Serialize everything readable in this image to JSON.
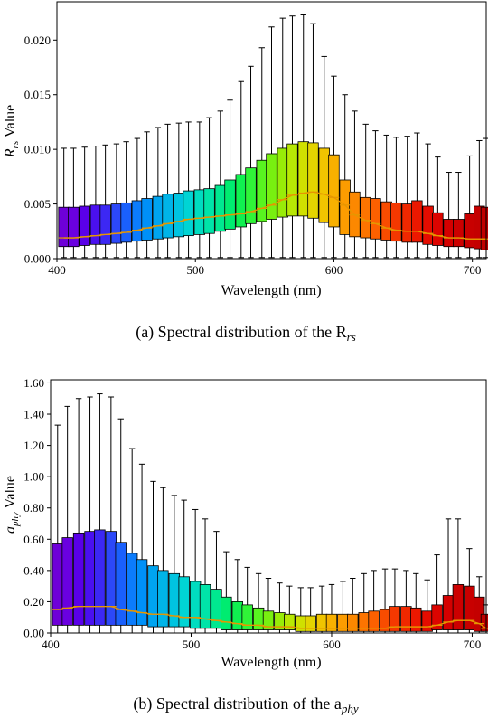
{
  "chart_data": [
    {
      "type": "box",
      "caption": "(a) Spectral distribution of the R",
      "caption_sub": "rs",
      "xlabel": "Wavelength (nm)",
      "ylabel_main": "R",
      "ylabel_sub": "rs",
      "ylabel_rest": " Value",
      "xlim": [
        400,
        710
      ],
      "ylim": [
        0,
        0.0235
      ],
      "xticks": [
        400,
        500,
        600,
        700
      ],
      "yticks": [
        0.0,
        0.005,
        0.01,
        0.015,
        0.02
      ],
      "ytick_labels": [
        "0.000",
        "0.005",
        "0.010",
        "0.015",
        "0.020"
      ],
      "wavelengths": [
        405,
        412,
        420,
        428,
        435,
        443,
        450,
        458,
        465,
        473,
        480,
        488,
        495,
        503,
        510,
        518,
        525,
        533,
        540,
        548,
        555,
        563,
        570,
        578,
        585,
        593,
        600,
        608,
        615,
        623,
        630,
        638,
        645,
        653,
        660,
        668,
        675,
        683,
        690,
        698,
        705,
        710
      ],
      "q1": [
        0.0011,
        0.0011,
        0.0012,
        0.0013,
        0.0013,
        0.0014,
        0.0015,
        0.0016,
        0.0017,
        0.0018,
        0.0019,
        0.002,
        0.0021,
        0.0022,
        0.0023,
        0.0025,
        0.0027,
        0.0029,
        0.0032,
        0.0034,
        0.0036,
        0.0038,
        0.0039,
        0.0039,
        0.0037,
        0.0033,
        0.0029,
        0.0022,
        0.002,
        0.0019,
        0.0018,
        0.0017,
        0.0016,
        0.0015,
        0.0015,
        0.0013,
        0.0012,
        0.0011,
        0.0011,
        0.001,
        0.0009,
        0.0008
      ],
      "q3": [
        0.0047,
        0.0047,
        0.0048,
        0.0049,
        0.0049,
        0.005,
        0.0051,
        0.0053,
        0.0055,
        0.0057,
        0.0059,
        0.006,
        0.0062,
        0.0063,
        0.0064,
        0.0067,
        0.0072,
        0.0077,
        0.0083,
        0.009,
        0.0096,
        0.0101,
        0.0105,
        0.0107,
        0.0106,
        0.0101,
        0.0095,
        0.0072,
        0.0061,
        0.0056,
        0.0055,
        0.0052,
        0.0051,
        0.005,
        0.0053,
        0.0048,
        0.0042,
        0.0036,
        0.0036,
        0.0041,
        0.0048,
        0.0047
      ],
      "median": [
        0.0019,
        0.0019,
        0.002,
        0.0021,
        0.0022,
        0.0023,
        0.0024,
        0.0026,
        0.0028,
        0.003,
        0.0032,
        0.0034,
        0.0036,
        0.0037,
        0.0038,
        0.0039,
        0.004,
        0.0041,
        0.0043,
        0.0046,
        0.0049,
        0.0054,
        0.0058,
        0.006,
        0.0061,
        0.0059,
        0.0056,
        0.0049,
        0.004,
        0.0035,
        0.0032,
        0.0028,
        0.0026,
        0.0025,
        0.0025,
        0.0023,
        0.0021,
        0.0019,
        0.0019,
        0.0018,
        0.0018,
        0.0018
      ],
      "whisker_low": [
        0.0001,
        0.0001,
        0.0001,
        0.0001,
        0.0001,
        0.0001,
        0.0001,
        0.0001,
        0.0001,
        0.0001,
        0.0001,
        0.0001,
        0.0001,
        0.0001,
        0.0001,
        0.0001,
        0.0001,
        0.0001,
        0.0001,
        0.0001,
        0.0001,
        0.0001,
        0.0001,
        0.0001,
        0.0001,
        0.0001,
        0.0001,
        0.0001,
        0.0001,
        0.0001,
        0.0001,
        0.0001,
        0.0001,
        0.0001,
        0.0001,
        0.0001,
        0.0001,
        0.0001,
        0.0001,
        0.0001,
        0.0001,
        0.0001
      ],
      "whisker_high": [
        0.0101,
        0.0101,
        0.0102,
        0.0103,
        0.0104,
        0.0105,
        0.0107,
        0.011,
        0.0116,
        0.012,
        0.0123,
        0.0124,
        0.0125,
        0.0125,
        0.0129,
        0.0135,
        0.0145,
        0.0162,
        0.0176,
        0.0193,
        0.0212,
        0.022,
        0.0222,
        0.0223,
        0.0215,
        0.0185,
        0.0167,
        0.015,
        0.0135,
        0.0123,
        0.0117,
        0.0113,
        0.0111,
        0.0112,
        0.0115,
        0.0105,
        0.0093,
        0.0079,
        0.0079,
        0.0094,
        0.0108,
        0.011
      ],
      "colors": [
        "#6e00d8",
        "#6a00e0",
        "#5a00e8",
        "#4a10f0",
        "#3c28f4",
        "#2c48f8",
        "#1a60fc",
        "#0c7cfc",
        "#0090f8",
        "#00a4f0",
        "#00b4e8",
        "#00c4e0",
        "#00d4d4",
        "#00dcc0",
        "#00e4a8",
        "#00e890",
        "#00ec70",
        "#10f050",
        "#30f438",
        "#58f420",
        "#78f010",
        "#98ec08",
        "#b8e804",
        "#d0e000",
        "#e4d400",
        "#f0c400",
        "#f8b000",
        "#fc9c00",
        "#fc8800",
        "#fc7400",
        "#fc6000",
        "#f84c00",
        "#f43800",
        "#f02800",
        "#ec1800",
        "#e40c00",
        "#dc0400",
        "#d40000",
        "#cc0000",
        "#c80000",
        "#c40000",
        "#c00000"
      ]
    },
    {
      "type": "box",
      "caption": "(b) Spectral distribution of the a",
      "caption_sub": "phy",
      "xlabel": "Wavelength (nm)",
      "ylabel_main": "a",
      "ylabel_sub": "phy",
      "ylabel_rest": " Value",
      "xlim": [
        400,
        710
      ],
      "ylim": [
        0,
        1.62
      ],
      "xticks": [
        400,
        500,
        600,
        700
      ],
      "yticks": [
        0.0,
        0.2,
        0.4,
        0.6,
        0.8,
        1.0,
        1.2,
        1.4,
        1.6
      ],
      "ytick_labels": [
        "0.00",
        "0.20",
        "0.40",
        "0.60",
        "0.80",
        "1.00",
        "1.20",
        "1.40",
        "1.60"
      ],
      "wavelengths": [
        405,
        412,
        420,
        428,
        435,
        443,
        450,
        458,
        465,
        473,
        480,
        488,
        495,
        503,
        510,
        518,
        525,
        533,
        540,
        548,
        555,
        563,
        570,
        578,
        585,
        593,
        600,
        608,
        615,
        623,
        630,
        638,
        645,
        653,
        660,
        668,
        675,
        683,
        690,
        698,
        705,
        710
      ],
      "q1": [
        0.05,
        0.05,
        0.05,
        0.05,
        0.05,
        0.05,
        0.05,
        0.05,
        0.05,
        0.04,
        0.04,
        0.04,
        0.04,
        0.03,
        0.03,
        0.03,
        0.02,
        0.02,
        0.02,
        0.02,
        0.02,
        0.02,
        0.02,
        0.01,
        0.01,
        0.01,
        0.01,
        0.01,
        0.01,
        0.01,
        0.01,
        0.01,
        0.01,
        0.01,
        0.01,
        0.01,
        0.02,
        0.02,
        0.02,
        0.02,
        0.01,
        0.01
      ],
      "q3": [
        0.57,
        0.61,
        0.64,
        0.65,
        0.66,
        0.65,
        0.58,
        0.51,
        0.47,
        0.43,
        0.4,
        0.38,
        0.36,
        0.33,
        0.31,
        0.28,
        0.23,
        0.2,
        0.18,
        0.16,
        0.14,
        0.13,
        0.12,
        0.11,
        0.11,
        0.12,
        0.12,
        0.12,
        0.12,
        0.13,
        0.14,
        0.15,
        0.17,
        0.17,
        0.16,
        0.14,
        0.18,
        0.24,
        0.31,
        0.3,
        0.23,
        0.12
      ],
      "median": [
        0.15,
        0.16,
        0.17,
        0.17,
        0.17,
        0.17,
        0.15,
        0.14,
        0.13,
        0.12,
        0.12,
        0.11,
        0.1,
        0.1,
        0.09,
        0.08,
        0.07,
        0.06,
        0.05,
        0.05,
        0.04,
        0.04,
        0.04,
        0.03,
        0.03,
        0.03,
        0.03,
        0.03,
        0.03,
        0.03,
        0.03,
        0.03,
        0.04,
        0.04,
        0.04,
        0.04,
        0.05,
        0.07,
        0.08,
        0.08,
        0.06,
        0.03
      ],
      "whisker_low": [
        0.0,
        0.0,
        0.0,
        0.0,
        0.0,
        0.0,
        0.0,
        0.0,
        0.0,
        0.0,
        0.0,
        0.0,
        0.0,
        0.0,
        0.0,
        0.0,
        0.0,
        0.0,
        0.0,
        0.0,
        0.0,
        0.0,
        0.0,
        0.0,
        0.0,
        0.0,
        0.0,
        0.0,
        0.0,
        0.0,
        0.0,
        0.0,
        0.0,
        0.0,
        0.0,
        0.0,
        0.0,
        0.0,
        0.0,
        0.0,
        0.0,
        0.0
      ],
      "whisker_high": [
        1.33,
        1.45,
        1.5,
        1.51,
        1.53,
        1.51,
        1.37,
        1.18,
        1.08,
        0.97,
        0.93,
        0.88,
        0.85,
        0.79,
        0.73,
        0.65,
        0.52,
        0.47,
        0.42,
        0.38,
        0.35,
        0.32,
        0.3,
        0.29,
        0.29,
        0.3,
        0.31,
        0.33,
        0.35,
        0.38,
        0.4,
        0.41,
        0.41,
        0.4,
        0.38,
        0.34,
        0.5,
        0.73,
        0.73,
        0.54,
        0.36,
        0.18
      ],
      "colors": [
        "#6e00d8",
        "#6a00e0",
        "#5a00e8",
        "#4a10f0",
        "#3c28f4",
        "#2c48f8",
        "#1a60fc",
        "#0c7cfc",
        "#0090f8",
        "#00a4f0",
        "#00b4e8",
        "#00c4e0",
        "#00d4d4",
        "#00dcc0",
        "#00e4a8",
        "#00e890",
        "#00ec70",
        "#10f050",
        "#30f438",
        "#58f420",
        "#78f010",
        "#98ec08",
        "#b8e804",
        "#d0e000",
        "#e4d400",
        "#f0c400",
        "#f8b000",
        "#fc9c00",
        "#fc8800",
        "#fc7400",
        "#fc6000",
        "#f84c00",
        "#f43800",
        "#f02800",
        "#ec1800",
        "#e40c00",
        "#dc0400",
        "#d40000",
        "#cc0000",
        "#c80000",
        "#c40000",
        "#c00000"
      ]
    }
  ],
  "style": {
    "median_color": "#e69600",
    "axis_color": "#000000",
    "background": "#ffffff"
  }
}
